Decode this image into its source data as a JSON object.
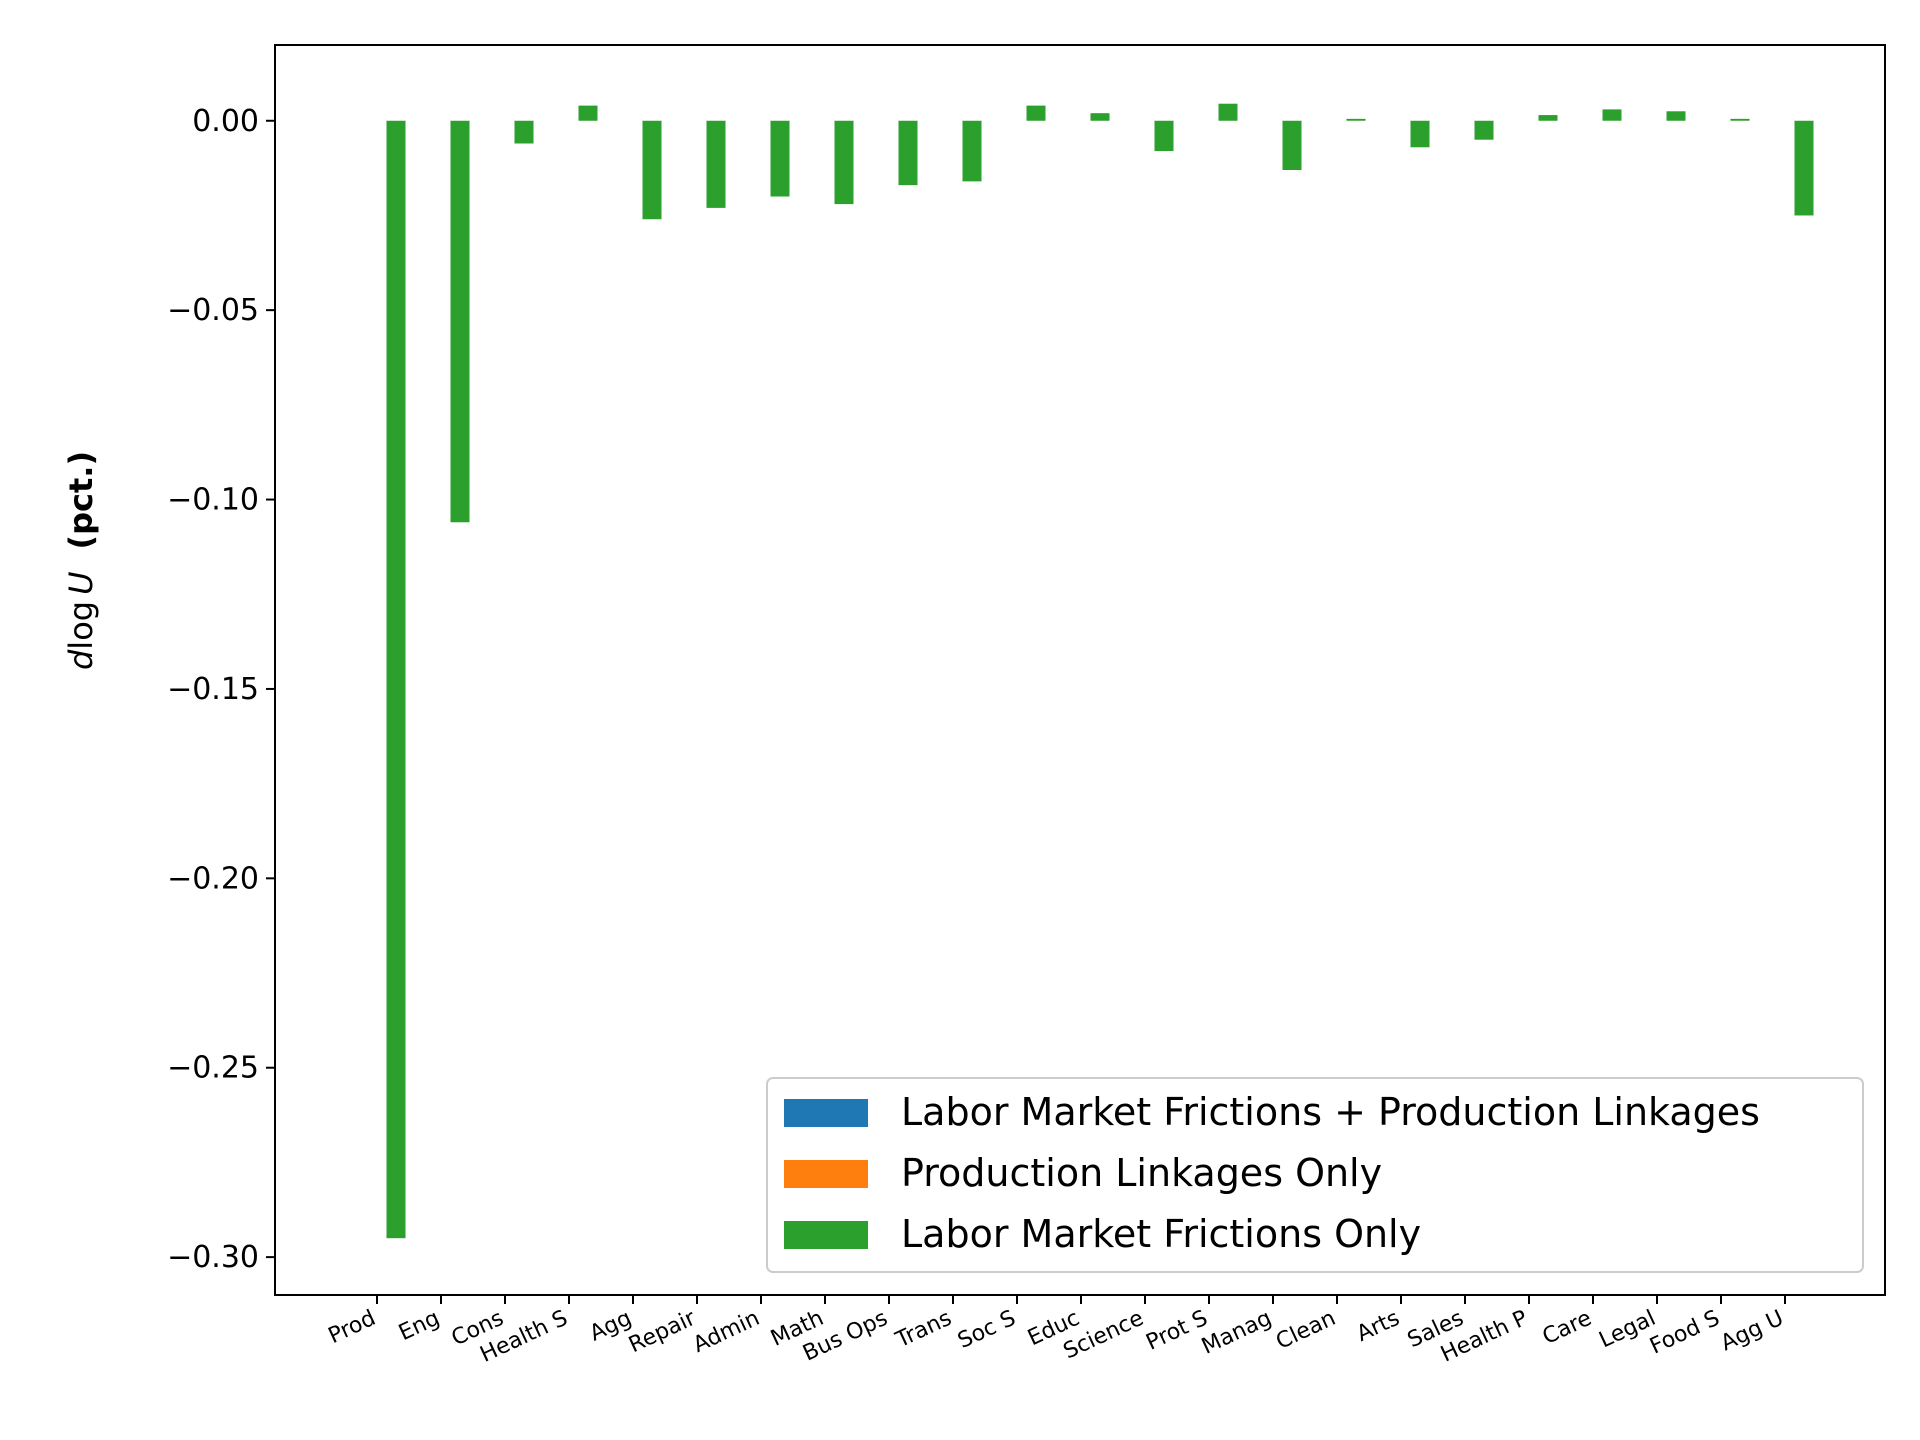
{
  "chart_data": {
    "type": "bar",
    "title": "",
    "xlabel": "",
    "ylabel_italic": "d",
    "ylabel_log": "log",
    "ylabel_var": "U",
    "ylabel_unit": "(pct.)",
    "ylim": [
      -0.31,
      0.02
    ],
    "yticks": [
      0.0,
      -0.05,
      -0.1,
      -0.15,
      -0.2,
      -0.25,
      -0.3
    ],
    "ytick_labels": [
      "0.00",
      "−0.05",
      "−0.10",
      "−0.15",
      "−0.20",
      "−0.25",
      "−0.30"
    ],
    "categories": [
      "Prod",
      "Eng",
      "Cons",
      "Health S",
      "Agg",
      "Repair",
      "Admin",
      "Math",
      "Bus Ops",
      "Trans",
      "Soc S",
      "Educ",
      "Science",
      "Prot S",
      "Manag",
      "Clean",
      "Arts",
      "Sales",
      "Health P",
      "Care",
      "Legal",
      "Food S",
      "Agg U"
    ],
    "legend_position": "lower-right",
    "series": [
      {
        "name": "Labor Market Frictions + Production Linkages",
        "color": "#1f77b4",
        "values": [
          0,
          0,
          0,
          0,
          0,
          0,
          0,
          0,
          0,
          0,
          0,
          0,
          0,
          0,
          0,
          0,
          0,
          0,
          0,
          0,
          0,
          0,
          0
        ]
      },
      {
        "name": "Production Linkages Only",
        "color": "#ff7f0e",
        "values": [
          0,
          0,
          0,
          0,
          0,
          0,
          0,
          0,
          0,
          0,
          0,
          0,
          0,
          0,
          0,
          0,
          0,
          0,
          0,
          0,
          0,
          0,
          0
        ]
      },
      {
        "name": "Labor Market Frictions Only",
        "color": "#2ca02c",
        "values": [
          -0.295,
          -0.106,
          -0.006,
          0.004,
          -0.026,
          -0.023,
          -0.02,
          -0.022,
          -0.017,
          -0.016,
          0.004,
          0.002,
          -0.008,
          0.0045,
          -0.013,
          0.0005,
          -0.007,
          -0.005,
          0.0015,
          0.003,
          0.0025,
          0.0005,
          -0.025
        ]
      }
    ]
  }
}
